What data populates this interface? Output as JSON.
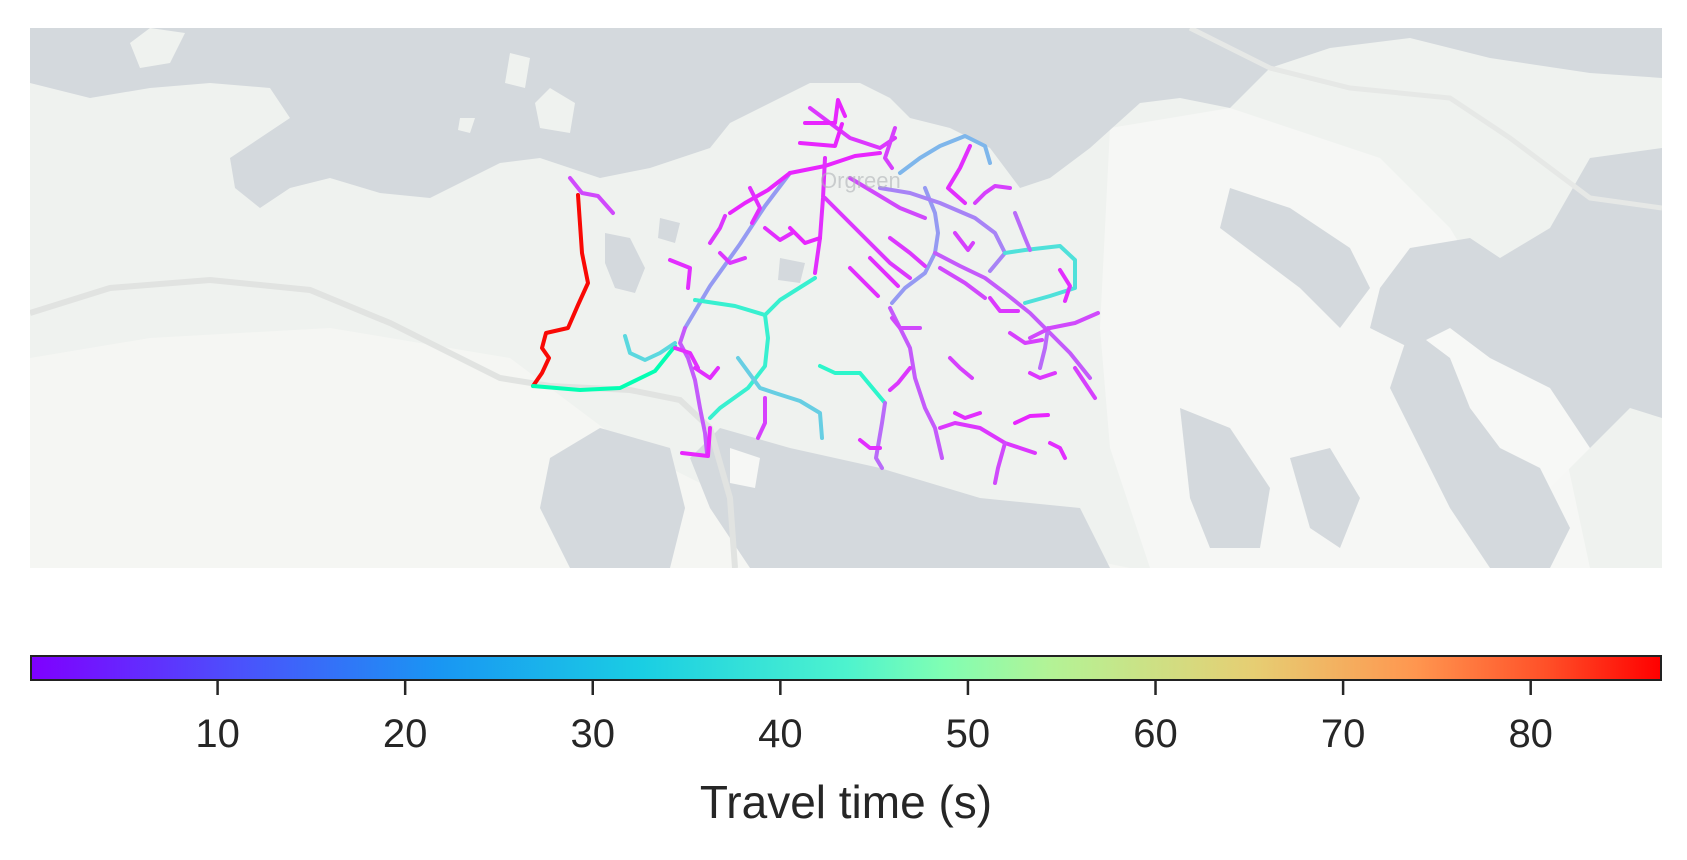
{
  "map": {
    "attribution": "Orgreen",
    "colors": {
      "water": "#d4d9dd",
      "land": "#eff2ef",
      "light_land": "#f6f7f5",
      "road": "#e4e6e4"
    }
  },
  "colorbar": {
    "label": "Travel time (s)",
    "cmap": "rainbow",
    "range": [
      0,
      87
    ],
    "ticks": [
      {
        "value": 10,
        "label": "10"
      },
      {
        "value": 20,
        "label": "20"
      },
      {
        "value": 30,
        "label": "30"
      },
      {
        "value": 40,
        "label": "40"
      },
      {
        "value": 50,
        "label": "50"
      },
      {
        "value": 60,
        "label": "60"
      },
      {
        "value": 70,
        "label": "70"
      },
      {
        "value": 80,
        "label": "80"
      }
    ]
  },
  "network": {
    "segments": [
      {
        "t": 86,
        "pts": [
          [
            548,
            167
          ],
          [
            552,
            225
          ],
          [
            558,
            255
          ],
          [
            548,
            277
          ],
          [
            538,
            300
          ],
          [
            516,
            305
          ],
          [
            512,
            320
          ],
          [
            519,
            330
          ],
          [
            512,
            345
          ],
          [
            503,
            358
          ]
        ]
      },
      {
        "t": 44,
        "pts": [
          [
            503,
            358
          ],
          [
            550,
            362
          ],
          [
            590,
            360
          ],
          [
            625,
            343
          ],
          [
            645,
            318
          ]
        ]
      },
      {
        "t": 28,
        "pts": [
          [
            595,
            308
          ],
          [
            600,
            325
          ],
          [
            615,
            332
          ],
          [
            630,
            325
          ],
          [
            645,
            315
          ]
        ]
      },
      {
        "t": 8,
        "pts": [
          [
            540,
            150
          ],
          [
            552,
            165
          ],
          [
            568,
            168
          ],
          [
            583,
            185
          ]
        ]
      },
      {
        "t": 18,
        "pts": [
          [
            655,
            300
          ],
          [
            680,
            258
          ],
          [
            710,
            216
          ],
          [
            735,
            178
          ],
          [
            760,
            145
          ]
        ]
      },
      {
        "t": 34,
        "pts": [
          [
            665,
            272
          ],
          [
            705,
            278
          ],
          [
            735,
            287
          ],
          [
            750,
            272
          ],
          [
            785,
            250
          ]
        ]
      },
      {
        "t": 34,
        "pts": [
          [
            735,
            287
          ],
          [
            738,
            310
          ],
          [
            735,
            338
          ],
          [
            718,
            360
          ],
          [
            690,
            380
          ],
          [
            680,
            390
          ]
        ]
      },
      {
        "t": 10,
        "pts": [
          [
            655,
            300
          ],
          [
            650,
            315
          ],
          [
            658,
            330
          ],
          [
            665,
            352
          ],
          [
            670,
            380
          ],
          [
            675,
            405
          ],
          [
            677,
            425
          ]
        ]
      },
      {
        "t": 4,
        "pts": [
          [
            652,
            425
          ],
          [
            678,
            428
          ],
          [
            680,
            400
          ]
        ]
      },
      {
        "t": 26,
        "pts": [
          [
            708,
            330
          ],
          [
            730,
            360
          ],
          [
            745,
            365
          ],
          [
            770,
            373
          ],
          [
            790,
            385
          ],
          [
            792,
            410
          ]
        ]
      },
      {
        "t": 36,
        "pts": [
          [
            790,
            338
          ],
          [
            805,
            345
          ],
          [
            830,
            345
          ],
          [
            855,
            375
          ]
        ]
      },
      {
        "t": 12,
        "pts": [
          [
            855,
            375
          ],
          [
            852,
            395
          ],
          [
            846,
            430
          ],
          [
            852,
            440
          ]
        ]
      },
      {
        "t": 10,
        "pts": [
          [
            860,
            280
          ],
          [
            870,
            300
          ],
          [
            880,
            320
          ],
          [
            885,
            350
          ],
          [
            895,
            380
          ],
          [
            905,
            400
          ],
          [
            912,
            430
          ]
        ]
      },
      {
        "t": 18,
        "pts": [
          [
            895,
            160
          ],
          [
            905,
            185
          ],
          [
            908,
            205
          ],
          [
            905,
            225
          ],
          [
            895,
            245
          ],
          [
            875,
            260
          ],
          [
            862,
            275
          ]
        ]
      },
      {
        "t": 22,
        "pts": [
          [
            870,
            145
          ],
          [
            890,
            130
          ],
          [
            910,
            118
          ],
          [
            935,
            108
          ],
          [
            955,
            118
          ],
          [
            960,
            135
          ]
        ]
      },
      {
        "t": 15,
        "pts": [
          [
            850,
            160
          ],
          [
            880,
            165
          ],
          [
            910,
            175
          ],
          [
            945,
            190
          ],
          [
            965,
            205
          ],
          [
            975,
            225
          ],
          [
            960,
            243
          ]
        ]
      },
      {
        "t": 30,
        "pts": [
          [
            975,
            225
          ],
          [
            995,
            222
          ],
          [
            1030,
            218
          ],
          [
            1045,
            232
          ],
          [
            1045,
            260
          ],
          [
            1020,
            268
          ],
          [
            995,
            275
          ]
        ]
      },
      {
        "t": 10,
        "pts": [
          [
            905,
            225
          ],
          [
            930,
            238
          ],
          [
            955,
            250
          ],
          [
            975,
            265
          ],
          [
            1000,
            285
          ],
          [
            1020,
            305
          ],
          [
            1040,
            325
          ],
          [
            1060,
            350
          ]
        ]
      },
      {
        "t": 6,
        "pts": [
          [
            780,
            80
          ],
          [
            800,
            95
          ],
          [
            820,
            110
          ],
          [
            850,
            120
          ],
          [
            865,
            110
          ]
        ]
      },
      {
        "t": 4,
        "pts": [
          [
            760,
            145
          ],
          [
            795,
            138
          ],
          [
            825,
            128
          ],
          [
            850,
            125
          ]
        ]
      },
      {
        "t": 5,
        "pts": [
          [
            795,
            130
          ],
          [
            793,
            170
          ],
          [
            790,
            210
          ],
          [
            785,
            245
          ]
        ]
      },
      {
        "t": 4,
        "pts": [
          [
            760,
            145
          ],
          [
            738,
            162
          ],
          [
            715,
            175
          ],
          [
            700,
            185
          ]
        ]
      },
      {
        "t": 6,
        "pts": [
          [
            795,
            170
          ],
          [
            820,
            195
          ],
          [
            840,
            215
          ],
          [
            860,
            235
          ],
          [
            880,
            250
          ]
        ]
      },
      {
        "t": 8,
        "pts": [
          [
            820,
            150
          ],
          [
            845,
            165
          ],
          [
            870,
            180
          ],
          [
            895,
            190
          ]
        ]
      },
      {
        "t": 8,
        "pts": [
          [
            910,
            240
          ],
          [
            935,
            255
          ],
          [
            955,
            270
          ]
        ]
      },
      {
        "t": 12,
        "pts": [
          [
            985,
            185
          ],
          [
            995,
            210
          ],
          [
            1000,
            222
          ]
        ]
      },
      {
        "t": 12,
        "pts": [
          [
            1018,
            300
          ],
          [
            1015,
            320
          ],
          [
            1010,
            340
          ]
        ]
      },
      {
        "t": 6,
        "pts": [
          [
            910,
            400
          ],
          [
            925,
            395
          ],
          [
            950,
            400
          ],
          [
            975,
            415
          ],
          [
            990,
            420
          ],
          [
            1005,
            425
          ]
        ]
      },
      {
        "t": 8,
        "pts": [
          [
            975,
            415
          ],
          [
            968,
            440
          ],
          [
            965,
            455
          ]
        ]
      },
      {
        "t": 5,
        "pts": [
          [
            925,
            385
          ],
          [
            935,
            390
          ],
          [
            950,
            385
          ]
        ]
      },
      {
        "t": 4,
        "pts": [
          [
            985,
            395
          ],
          [
            1000,
            388
          ],
          [
            1018,
            387
          ]
        ]
      },
      {
        "t": 5,
        "pts": [
          [
            1020,
            415
          ],
          [
            1030,
            420
          ],
          [
            1035,
            430
          ]
        ]
      },
      {
        "t": 7,
        "pts": [
          [
            735,
            370
          ],
          [
            735,
            395
          ],
          [
            728,
            410
          ]
        ]
      },
      {
        "t": 5,
        "pts": [
          [
            830,
            412
          ],
          [
            840,
            420
          ],
          [
            850,
            420
          ]
        ]
      },
      {
        "t": 8,
        "pts": [
          [
            862,
            290
          ],
          [
            870,
            300
          ],
          [
            890,
            300
          ]
        ]
      },
      {
        "t": 4,
        "pts": [
          [
            775,
            95
          ],
          [
            805,
            95
          ],
          [
            808,
            72
          ],
          [
            815,
            88
          ]
        ]
      },
      {
        "t": 4,
        "pts": [
          [
            770,
            115
          ],
          [
            805,
            118
          ],
          [
            812,
            96
          ]
        ]
      },
      {
        "t": 5,
        "pts": [
          [
            735,
            200
          ],
          [
            750,
            212
          ],
          [
            762,
            205
          ]
        ]
      },
      {
        "t": 5,
        "pts": [
          [
            720,
            160
          ],
          [
            730,
            180
          ],
          [
            722,
            195
          ]
        ]
      },
      {
        "t": 5,
        "pts": [
          [
            640,
            232
          ],
          [
            660,
            240
          ],
          [
            658,
            260
          ]
        ]
      },
      {
        "t": 6,
        "pts": [
          [
            680,
            215
          ],
          [
            690,
            200
          ],
          [
            695,
            188
          ]
        ]
      },
      {
        "t": 6,
        "pts": [
          [
            690,
            225
          ],
          [
            700,
            235
          ],
          [
            715,
            230
          ]
        ]
      },
      {
        "t": 5,
        "pts": [
          [
            645,
            320
          ],
          [
            660,
            325
          ],
          [
            668,
            340
          ]
        ]
      },
      {
        "t": 5,
        "pts": [
          [
            665,
            340
          ],
          [
            680,
            350
          ],
          [
            688,
            340
          ]
        ]
      },
      {
        "t": 4,
        "pts": [
          [
            760,
            200
          ],
          [
            775,
            215
          ],
          [
            790,
            210
          ]
        ]
      },
      {
        "t": 5,
        "pts": [
          [
            820,
            240
          ],
          [
            835,
            255
          ],
          [
            848,
            268
          ]
        ]
      },
      {
        "t": 5,
        "pts": [
          [
            840,
            230
          ],
          [
            855,
            245
          ],
          [
            868,
            258
          ]
        ]
      },
      {
        "t": 6,
        "pts": [
          [
            860,
            210
          ],
          [
            880,
            225
          ],
          [
            895,
            238
          ]
        ]
      },
      {
        "t": 7,
        "pts": [
          [
            865,
            100
          ],
          [
            860,
            115
          ],
          [
            855,
            130
          ],
          [
            862,
            140
          ]
        ]
      },
      {
        "t": 5,
        "pts": [
          [
            940,
            118
          ],
          [
            930,
            140
          ],
          [
            918,
            160
          ],
          [
            935,
            175
          ]
        ]
      },
      {
        "t": 7,
        "pts": [
          [
            945,
            175
          ],
          [
            955,
            165
          ],
          [
            965,
            158
          ],
          [
            980,
            160
          ]
        ]
      },
      {
        "t": 8,
        "pts": [
          [
            1000,
            310
          ],
          [
            1020,
            300
          ],
          [
            1045,
            295
          ],
          [
            1068,
            285
          ]
        ]
      },
      {
        "t": 6,
        "pts": [
          [
            960,
            270
          ],
          [
            970,
            283
          ],
          [
            988,
            283
          ]
        ]
      },
      {
        "t": 7,
        "pts": [
          [
            980,
            305
          ],
          [
            995,
            315
          ],
          [
            1012,
            312
          ]
        ]
      },
      {
        "t": 7,
        "pts": [
          [
            920,
            330
          ],
          [
            930,
            340
          ],
          [
            942,
            350
          ]
        ]
      },
      {
        "t": 6,
        "pts": [
          [
            880,
            340
          ],
          [
            868,
            355
          ],
          [
            860,
            362
          ]
        ]
      },
      {
        "t": 6,
        "pts": [
          [
            1000,
            345
          ],
          [
            1010,
            350
          ],
          [
            1025,
            345
          ]
        ]
      },
      {
        "t": 7,
        "pts": [
          [
            1045,
            340
          ],
          [
            1055,
            355
          ],
          [
            1065,
            370
          ]
        ]
      },
      {
        "t": 5,
        "pts": [
          [
            1030,
            242
          ],
          [
            1040,
            258
          ],
          [
            1035,
            273
          ]
        ]
      },
      {
        "t": 7,
        "pts": [
          [
            925,
            205
          ],
          [
            938,
            222
          ],
          [
            943,
            215
          ]
        ]
      }
    ]
  }
}
